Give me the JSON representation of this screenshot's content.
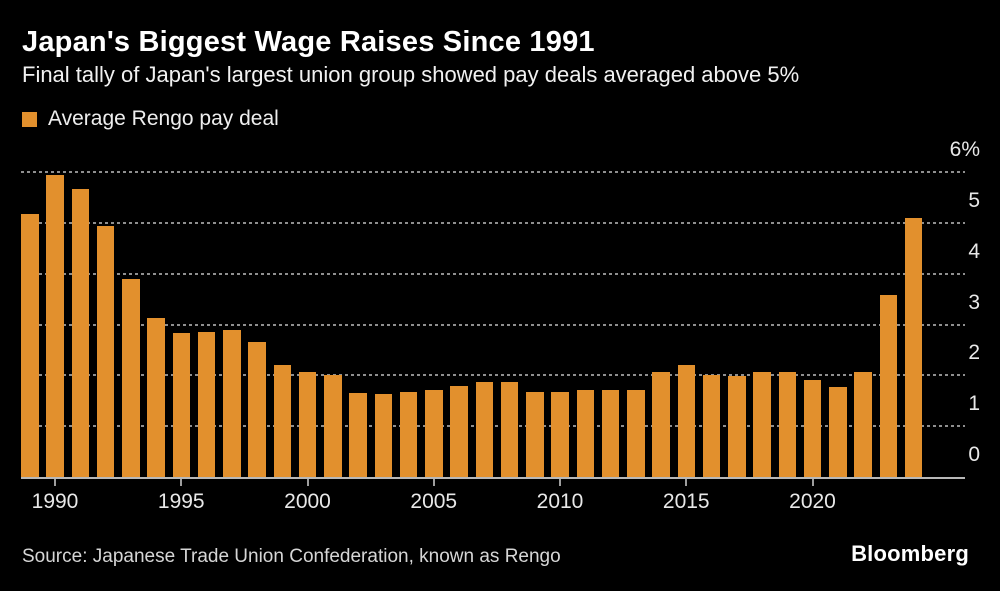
{
  "header": {
    "title": "Japan's Biggest Wage Raises Since 1991",
    "subtitle": "Final tally of Japan's largest union group showed pay deals averaged above 5%"
  },
  "legend": {
    "label": "Average Rengo pay deal",
    "swatch_color": "#E2902D"
  },
  "chart_data": {
    "type": "bar",
    "title": "Japan's Biggest Wage Raises Since 1991",
    "subtitle": "Final tally of Japan's largest union group showed pay deals averaged above 5%",
    "series_name": "Average Rengo pay deal",
    "unit": "%",
    "years": [
      1989,
      1990,
      1991,
      1992,
      1993,
      1994,
      1995,
      1996,
      1997,
      1998,
      1999,
      2000,
      2001,
      2002,
      2003,
      2004,
      2005,
      2006,
      2007,
      2008,
      2009,
      2010,
      2011,
      2012,
      2013,
      2014,
      2015,
      2016,
      2017,
      2018,
      2019,
      2020,
      2021,
      2022,
      2023,
      2024
    ],
    "values": [
      5.17,
      5.94,
      5.66,
      4.95,
      3.9,
      3.13,
      2.83,
      2.86,
      2.9,
      2.66,
      2.21,
      2.06,
      2.01,
      1.66,
      1.63,
      1.67,
      1.71,
      1.79,
      1.87,
      1.88,
      1.67,
      1.67,
      1.71,
      1.72,
      1.71,
      2.07,
      2.2,
      2.0,
      1.98,
      2.07,
      2.07,
      1.9,
      1.78,
      2.07,
      3.58,
      5.1
    ],
    "ylim": [
      0,
      6
    ],
    "yticks": [
      0,
      1,
      2,
      3,
      4,
      5,
      6
    ],
    "ytick_labels": [
      "0",
      "1",
      "2",
      "3",
      "4",
      "5",
      "6%"
    ],
    "xticks": [
      1990,
      1995,
      2000,
      2005,
      2010,
      2015,
      2020
    ],
    "bar_color": "#E2902D",
    "background_color": "#000000",
    "grid": "dashed horizontal gridlines, y-axis labels on right",
    "legend_position": "top-left"
  },
  "footer": {
    "source": "Source: Japanese Trade Union Confederation, known as Rengo",
    "brand": "Bloomberg"
  }
}
